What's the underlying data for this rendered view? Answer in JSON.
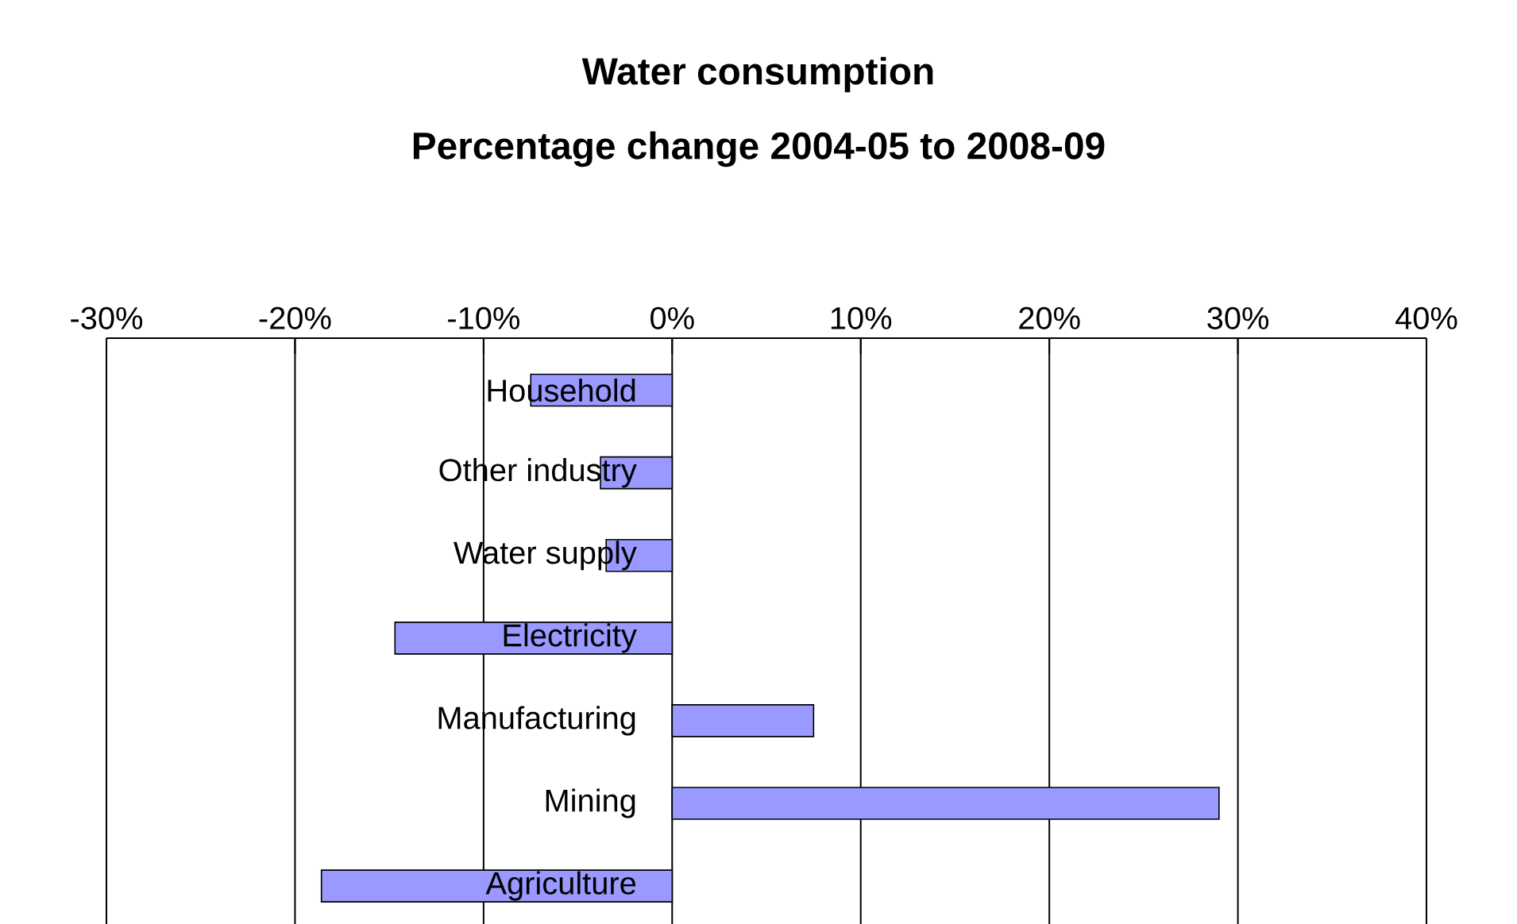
{
  "chart_data": {
    "type": "bar",
    "orientation": "horizontal",
    "title": "Water consumption",
    "subtitle": "Percentage change 2004-05 to 2008-09",
    "categories": [
      "Household",
      "Other industry",
      "Water supply",
      "Electricity",
      "Manufacturing",
      "Mining",
      "Agriculture"
    ],
    "values": [
      -7.5,
      -3.8,
      -3.5,
      -14.7,
      7.5,
      29,
      -18.6
    ],
    "color": "#9999ff",
    "xlim": [
      -30,
      40
    ],
    "xticks": [
      {
        "value": -30,
        "label": "-30%"
      },
      {
        "value": -20,
        "label": "-20%"
      },
      {
        "value": -10,
        "label": "-10%"
      },
      {
        "value": 0,
        "label": "0%"
      },
      {
        "value": 10,
        "label": "10%"
      },
      {
        "value": 20,
        "label": "20%"
      },
      {
        "value": 30,
        "label": "30%"
      },
      {
        "value": 40,
        "label": "40%"
      }
    ],
    "grid": "x"
  }
}
